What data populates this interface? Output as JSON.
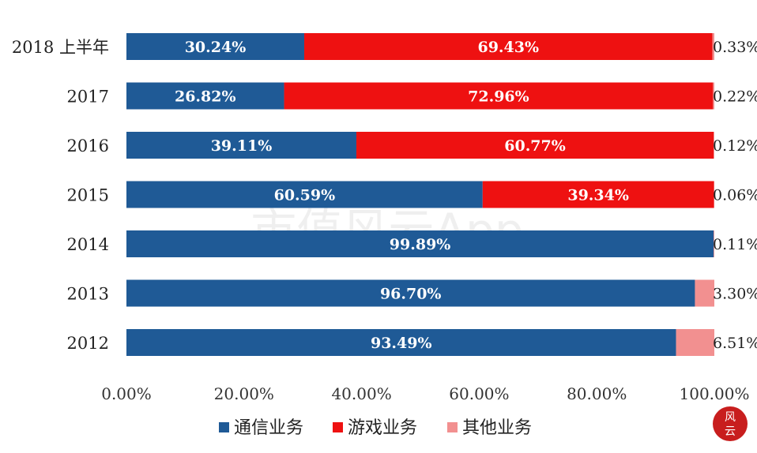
{
  "chart_data": {
    "type": "bar",
    "orientation": "horizontal",
    "stacked": true,
    "categories": [
      "2018 上半年",
      "2017",
      "2016",
      "2015",
      "2014",
      "2013",
      "2012"
    ],
    "series": [
      {
        "name": "通信业务",
        "color": "#1f5a96",
        "values": [
          30.24,
          26.82,
          39.11,
          60.59,
          99.89,
          96.7,
          93.49
        ],
        "labels": [
          "30.24%",
          "26.82%",
          "39.11%",
          "60.59%",
          "99.89%",
          "96.70%",
          "93.49%"
        ]
      },
      {
        "name": "游戏业务",
        "color": "#ee1111",
        "values": [
          69.43,
          72.96,
          60.77,
          39.34,
          0,
          0,
          0
        ],
        "labels": [
          "69.43%",
          "72.96%",
          "60.77%",
          "39.34%",
          "",
          "",
          ""
        ]
      },
      {
        "name": "其他业务",
        "color": "#f29090",
        "values": [
          0.33,
          0.22,
          0.12,
          0.06,
          0.11,
          3.3,
          6.51
        ],
        "labels": [
          "0.33%",
          "0.22%",
          "0.12%",
          "0.06%",
          "0.11%",
          "3.30%",
          "6.51%"
        ]
      }
    ],
    "xlim": [
      0,
      100
    ],
    "xticks": [
      "0.00%",
      "20.00%",
      "40.00%",
      "60.00%",
      "80.00%",
      "100.00%"
    ],
    "legend_position": "bottom",
    "grid": false,
    "watermark": "市值风云App"
  }
}
